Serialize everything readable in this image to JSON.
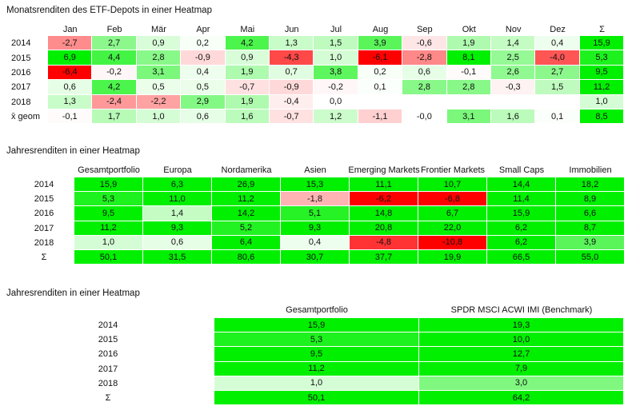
{
  "monthly": {
    "title": "Monatsrenditen des ETF-Depots in einer Heatmap",
    "columns": [
      "Jan",
      "Feb",
      "Mär",
      "Apr",
      "Mai",
      "Jun",
      "Jul",
      "Aug",
      "Sep",
      "Okt",
      "Nov",
      "Dez",
      "Σ"
    ],
    "rows": [
      {
        "label": "2014",
        "values": [
          "-2,7",
          "2,7",
          "0,9",
          "0,2",
          "4,2",
          "1,3",
          "1,5",
          "3,9",
          "-0,6",
          "1,9",
          "1,4",
          "0,4",
          "15,9"
        ]
      },
      {
        "label": "2015",
        "values": [
          "6,9",
          "4,4",
          "2,8",
          "-0,9",
          "0,9",
          "-4,3",
          "1,0",
          "-6,1",
          "-2,8",
          "8,1",
          "2,5",
          "-4,0",
          "5,3"
        ]
      },
      {
        "label": "2016",
        "values": [
          "-6,4",
          "-0,2",
          "3,1",
          "0,4",
          "1,9",
          "0,7",
          "3,8",
          "0,2",
          "0,6",
          "-0,1",
          "2,6",
          "2,7",
          "9,5"
        ]
      },
      {
        "label": "2017",
        "values": [
          "0,6",
          "4,2",
          "0,5",
          "0,5",
          "-0,7",
          "-0,9",
          "-0,2",
          "0,1",
          "2,8",
          "2,8",
          "-0,3",
          "1,5",
          "11,2"
        ]
      },
      {
        "label": "2018",
        "values": [
          "1,3",
          "-2,4",
          "-2,2",
          "2,9",
          "1,9",
          "-0,4",
          "0,0",
          null,
          null,
          null,
          null,
          null,
          "1,0"
        ]
      },
      {
        "label": "x̄ geom",
        "values": [
          "-0,1",
          "1,7",
          "1,0",
          "0,6",
          "1,6",
          "-0,7",
          "1,2",
          "-1,1",
          "-0,0",
          "3,1",
          "1,6",
          "0,1",
          "8,5"
        ]
      }
    ]
  },
  "annual": {
    "title": "Jahresrenditen in einer Heatmap",
    "columns": [
      "Gesamtportfolio",
      "Europa",
      "Nordamerika",
      "Asien",
      "Emerging Markets",
      "Frontier Markets",
      "Small Caps",
      "Immobilien"
    ],
    "rows": [
      {
        "label": "2014",
        "values": [
          "15,9",
          "6,3",
          "26,9",
          "15,3",
          "11,1",
          "10,7",
          "14,4",
          "18,2"
        ]
      },
      {
        "label": "2015",
        "values": [
          "5,3",
          "11,0",
          "11,2",
          "-1,8",
          "-6,2",
          "-6,8",
          "11,4",
          "8,9"
        ]
      },
      {
        "label": "2016",
        "values": [
          "9,5",
          "1,4",
          "14,2",
          "5,1",
          "14,8",
          "6,7",
          "15,9",
          "6,6"
        ]
      },
      {
        "label": "2017",
        "values": [
          "11,2",
          "9,3",
          "5,2",
          "9,3",
          "20,8",
          "22,0",
          "6,2",
          "8,7"
        ]
      },
      {
        "label": "2018",
        "values": [
          "1,0",
          "0,6",
          "6,4",
          "0,4",
          "-4,8",
          "-10,8",
          "6,2",
          "3,9"
        ]
      },
      {
        "label": "Σ",
        "values": [
          "50,1",
          "31,5",
          "80,6",
          "30,7",
          "37,7",
          "19,9",
          "66,5",
          "55,0"
        ]
      }
    ]
  },
  "benchmark": {
    "title": "Jahresrenditen in einer Heatmap",
    "columns": [
      "Gesamtportfolio",
      "SPDR MSCI ACWI IMI  (Benchmark)"
    ],
    "rows": [
      {
        "label": "2014",
        "values": [
          "15,9",
          "19,3"
        ]
      },
      {
        "label": "2015",
        "values": [
          "5,3",
          "10,0"
        ]
      },
      {
        "label": "2016",
        "values": [
          "9,5",
          "12,7"
        ]
      },
      {
        "label": "2017",
        "values": [
          "11,2",
          "7,9"
        ]
      },
      {
        "label": "2018",
        "values": [
          "1,0",
          "3,0"
        ]
      },
      {
        "label": "Σ",
        "values": [
          "50,1",
          "64,2"
        ]
      }
    ]
  }
}
